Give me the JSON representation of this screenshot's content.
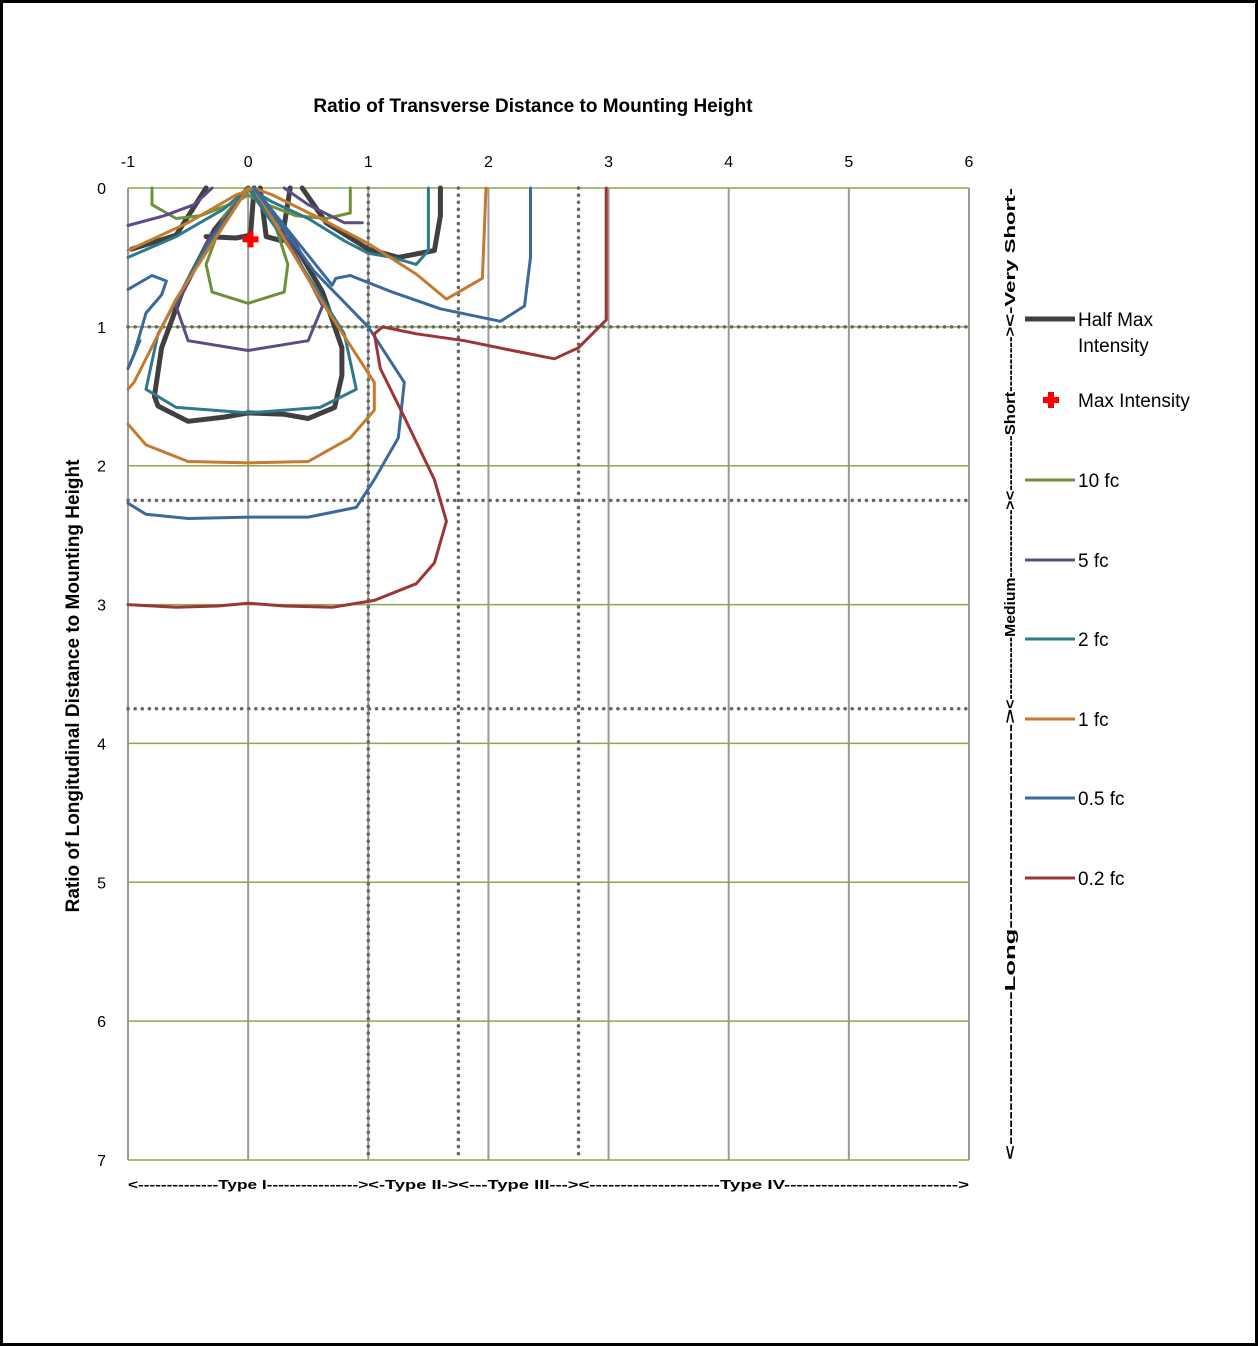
{
  "chart_data": {
    "type": "line",
    "title": "Ratio of Transverse Distance to Mounting Height",
    "xlabel": "Ratio of Transverse Distance to Mounting Height",
    "ylabel": "Ratio of Longitudinal Distance to Mounting Height",
    "x_range": [
      -1,
      6
    ],
    "y_range": [
      0,
      7
    ],
    "y_inverted": true,
    "x_axis_position": "top",
    "x_ticks": [
      "-1",
      "0",
      "1",
      "2",
      "3",
      "4",
      "5",
      "6"
    ],
    "y_ticks": [
      "0",
      "1",
      "2",
      "3",
      "4",
      "5",
      "6",
      "7"
    ],
    "grid": true,
    "legend_position": "right",
    "legend": [
      "Half Max Intensity",
      "Max Intensity",
      "10 fc",
      "5 fc",
      "2 fc",
      "1 fc",
      "0.5 fc",
      "0.2 fc"
    ],
    "colors": {
      "grid_vertical": "#9a9a9a",
      "grid_horizontal": "#8aa84f",
      "dotted_boundary": "#666666",
      "half_max": "#404040",
      "max_marker": "#ff0000",
      "fc10": "#6f8f3a",
      "fc5": "#5f4a85",
      "fc2": "#2e7a8a",
      "fc1": "#c47a30",
      "fc05": "#3a6a9c",
      "fc02": "#9c3636"
    },
    "lateral_boundaries": [
      1.0,
      1.75,
      2.75
    ],
    "longitudinal_boundaries": [
      1.0,
      2.25,
      3.75
    ],
    "type_labels": [
      "<--------------Type I---------------->",
      "<-Type II->",
      "<---Type III--->",
      "<---------------------Type IV---------------------------->"
    ],
    "class_labels": [
      "<-Very Short-",
      "<----------Short---------->",
      "<------------Medium------------->",
      "<------------------Long------------------------>"
    ],
    "max_intensity": {
      "name": "Max Intensity",
      "x": 0.02,
      "y": 0.37
    },
    "series": [
      {
        "name": "Half Max Intensity",
        "key": "half_max",
        "stroke_width": 5,
        "paths": [
          [
            [
              -0.97,
              0.44
            ],
            [
              -0.6,
              0.34
            ],
            [
              -0.35,
              0.0
            ]
          ],
          [
            [
              -0.35,
              0.35
            ],
            [
              -0.1,
              0.36
            ],
            [
              0.02,
              0.34
            ],
            [
              0.05,
              0.0
            ]
          ],
          [
            [
              0.1,
              0.0
            ],
            [
              0.15,
              0.35
            ],
            [
              0.28,
              0.38
            ],
            [
              0.35,
              0.0
            ]
          ],
          [
            [
              0.45,
              0.0
            ],
            [
              0.65,
              0.25
            ],
            [
              1.0,
              0.44
            ],
            [
              1.25,
              0.5
            ],
            [
              1.55,
              0.45
            ],
            [
              1.6,
              0.2
            ],
            [
              1.6,
              0.0
            ]
          ],
          [
            [
              0.0,
              0.0
            ],
            [
              -0.28,
              0.3
            ],
            [
              -0.55,
              0.75
            ],
            [
              -0.72,
              1.15
            ],
            [
              -0.78,
              1.5
            ],
            [
              -0.75,
              1.57
            ],
            [
              -0.5,
              1.68
            ],
            [
              -0.2,
              1.65
            ],
            [
              0.0,
              1.62
            ],
            [
              0.3,
              1.63
            ],
            [
              0.5,
              1.66
            ],
            [
              0.72,
              1.58
            ],
            [
              0.78,
              1.35
            ],
            [
              0.78,
              1.15
            ],
            [
              0.62,
              0.75
            ],
            [
              0.35,
              0.35
            ],
            [
              0.05,
              0.0
            ]
          ]
        ]
      },
      {
        "name": "10 fc",
        "key": "fc10",
        "stroke_width": 3,
        "paths": [
          [
            [
              -0.8,
              0.0
            ],
            [
              -0.8,
              0.12
            ],
            [
              -0.6,
              0.22
            ],
            [
              -0.4,
              0.2
            ],
            [
              -0.1,
              0.1
            ],
            [
              0.0,
              0.05
            ],
            [
              0.1,
              0.1
            ],
            [
              0.4,
              0.2
            ],
            [
              0.65,
              0.22
            ],
            [
              0.85,
              0.18
            ],
            [
              0.85,
              0.0
            ]
          ],
          [
            [
              0.0,
              0.0
            ],
            [
              -0.2,
              0.2
            ],
            [
              -0.35,
              0.55
            ],
            [
              -0.3,
              0.75
            ],
            [
              0.0,
              0.83
            ],
            [
              0.3,
              0.75
            ],
            [
              0.33,
              0.55
            ],
            [
              0.2,
              0.2
            ],
            [
              0.0,
              0.0
            ]
          ]
        ]
      },
      {
        "name": "5 fc",
        "key": "fc5",
        "stroke_width": 3,
        "paths": [
          [
            [
              -1.0,
              0.27
            ],
            [
              -0.7,
              0.2
            ],
            [
              -0.45,
              0.12
            ],
            [
              -0.3,
              0.0
            ]
          ],
          [
            [
              0.3,
              0.0
            ],
            [
              0.5,
              0.12
            ],
            [
              0.8,
              0.25
            ],
            [
              0.95,
              0.25
            ]
          ],
          [
            [
              0.0,
              0.0
            ],
            [
              -0.35,
              0.4
            ],
            [
              -0.6,
              0.85
            ],
            [
              -0.5,
              1.1
            ],
            [
              0.0,
              1.17
            ],
            [
              0.5,
              1.1
            ],
            [
              0.62,
              0.85
            ],
            [
              0.35,
              0.4
            ],
            [
              0.0,
              0.0
            ]
          ]
        ]
      },
      {
        "name": "2 fc",
        "key": "fc2",
        "stroke_width": 3,
        "paths": [
          [
            [
              -1.0,
              0.5
            ],
            [
              -0.6,
              0.35
            ],
            [
              -0.2,
              0.15
            ],
            [
              0.0,
              0.0
            ],
            [
              0.2,
              0.1
            ],
            [
              0.5,
              0.22
            ],
            [
              0.8,
              0.38
            ],
            [
              1.0,
              0.47
            ],
            [
              1.2,
              0.5
            ],
            [
              1.4,
              0.55
            ],
            [
              1.5,
              0.45
            ],
            [
              1.5,
              0.0
            ]
          ],
          [
            [
              0.0,
              0.0
            ],
            [
              -0.4,
              0.5
            ],
            [
              -0.75,
              1.05
            ],
            [
              -0.85,
              1.45
            ],
            [
              -0.6,
              1.58
            ],
            [
              0.0,
              1.62
            ],
            [
              0.6,
              1.58
            ],
            [
              0.9,
              1.45
            ],
            [
              0.8,
              1.05
            ],
            [
              0.4,
              0.5
            ],
            [
              0.0,
              0.0
            ]
          ],
          [
            [
              -1.0,
              1.3
            ],
            [
              -0.9,
              1.1
            ]
          ]
        ]
      },
      {
        "name": "1 fc",
        "key": "fc1",
        "stroke_width": 3,
        "paths": [
          [
            [
              -1.0,
              0.45
            ],
            [
              -0.5,
              0.25
            ],
            [
              -0.1,
              0.05
            ],
            [
              0.05,
              0.0
            ],
            [
              0.2,
              0.05
            ],
            [
              0.6,
              0.22
            ],
            [
              1.0,
              0.4
            ],
            [
              1.4,
              0.62
            ],
            [
              1.65,
              0.8
            ],
            [
              1.95,
              0.65
            ],
            [
              1.98,
              0.0
            ]
          ],
          [
            [
              0.0,
              0.0
            ],
            [
              -0.6,
              0.8
            ],
            [
              -0.95,
              1.4
            ],
            [
              -1.0,
              1.45
            ]
          ],
          [
            [
              0.05,
              0.0
            ],
            [
              0.6,
              0.8
            ],
            [
              1.05,
              1.4
            ],
            [
              1.05,
              1.6
            ],
            [
              0.85,
              1.8
            ],
            [
              0.5,
              1.97
            ],
            [
              0.0,
              1.98
            ],
            [
              -0.5,
              1.97
            ],
            [
              -0.85,
              1.85
            ],
            [
              -1.0,
              1.7
            ]
          ]
        ]
      },
      {
        "name": "0.5 fc",
        "key": "fc05",
        "stroke_width": 3,
        "paths": [
          [
            [
              -1.0,
              0.73
            ],
            [
              -0.8,
              0.63
            ],
            [
              -0.68,
              0.67
            ],
            [
              -0.72,
              0.77
            ],
            [
              -0.85,
              0.9
            ],
            [
              -0.95,
              1.2
            ],
            [
              -1.0,
              1.3
            ]
          ],
          [
            [
              0.05,
              0.0
            ],
            [
              0.7,
              0.7
            ],
            [
              0.73,
              0.65
            ],
            [
              0.85,
              0.63
            ],
            [
              1.2,
              0.75
            ],
            [
              1.6,
              0.87
            ],
            [
              2.1,
              0.96
            ],
            [
              2.3,
              0.85
            ],
            [
              2.35,
              0.5
            ],
            [
              2.35,
              0.0
            ]
          ],
          [
            [
              0.05,
              0.0
            ],
            [
              0.55,
              0.6
            ],
            [
              1.0,
              1.0
            ],
            [
              1.3,
              1.4
            ],
            [
              1.25,
              1.8
            ],
            [
              1.05,
              2.1
            ],
            [
              0.9,
              2.3
            ],
            [
              0.5,
              2.37
            ],
            [
              0.0,
              2.37
            ],
            [
              -0.5,
              2.38
            ],
            [
              -0.85,
              2.35
            ],
            [
              -1.0,
              2.27
            ]
          ]
        ]
      },
      {
        "name": "0.2 fc",
        "key": "fc02",
        "stroke_width": 3,
        "paths": [
          [
            [
              -1.0,
              3.0
            ],
            [
              -0.6,
              3.02
            ],
            [
              -0.25,
              3.01
            ],
            [
              0.0,
              2.99
            ],
            [
              0.3,
              3.01
            ],
            [
              0.7,
              3.02
            ],
            [
              1.05,
              2.97
            ],
            [
              1.4,
              2.85
            ],
            [
              1.55,
              2.7
            ],
            [
              1.65,
              2.4
            ],
            [
              1.55,
              2.1
            ],
            [
              1.3,
              1.65
            ],
            [
              1.1,
              1.3
            ],
            [
              1.05,
              1.05
            ],
            [
              1.12,
              1.0
            ],
            [
              1.4,
              1.05
            ],
            [
              1.8,
              1.1
            ],
            [
              2.2,
              1.17
            ],
            [
              2.55,
              1.23
            ],
            [
              2.75,
              1.15
            ],
            [
              2.98,
              0.95
            ],
            [
              2.98,
              0.5
            ],
            [
              2.98,
              0.0
            ]
          ]
        ]
      }
    ]
  }
}
